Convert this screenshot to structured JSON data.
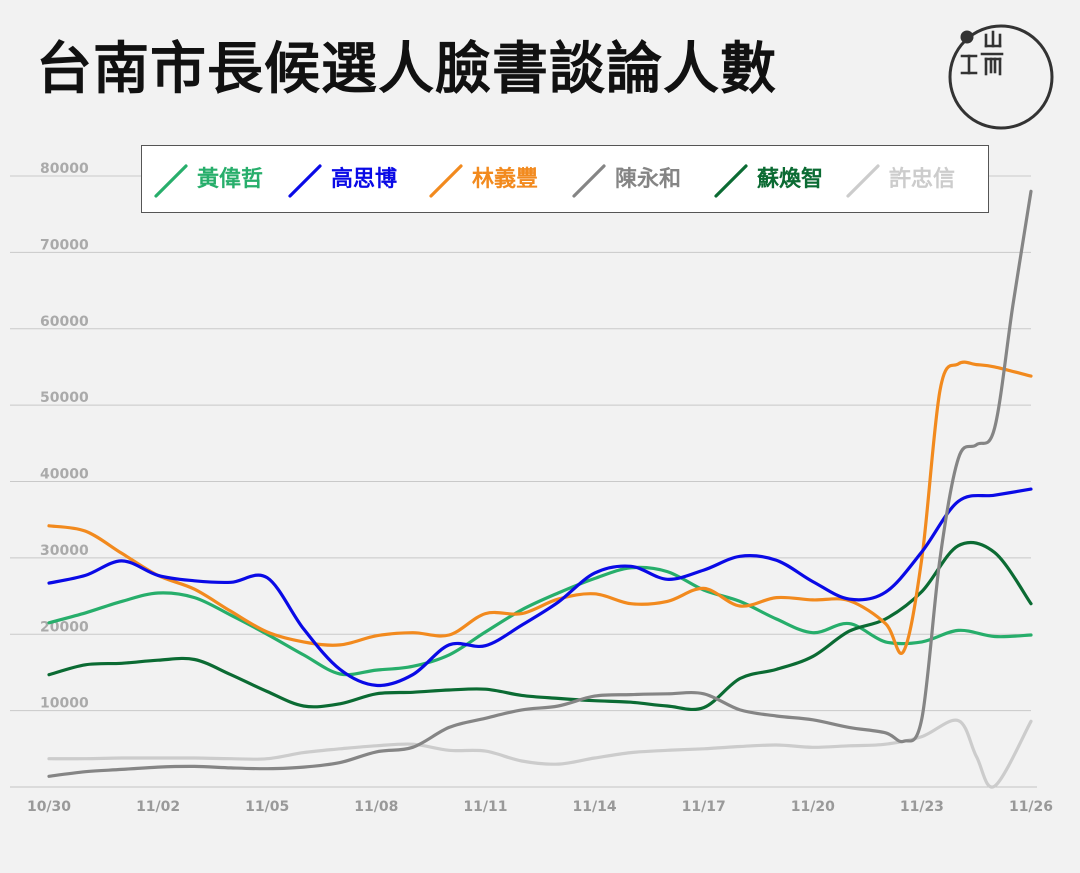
{
  "title": "台南市長候選人臉書談論人數",
  "logo": {
    "name": "端傳媒",
    "glyph_top": "山",
    "glyph_left": "工",
    "glyph_right": "而"
  },
  "chart_data": {
    "type": "line",
    "title": "台南市長候選人臉書談論人數",
    "xlabel": "",
    "ylabel": "",
    "ylim": [
      0,
      80000
    ],
    "xlim": [
      0,
      27
    ],
    "grid": true,
    "legend_position": "top",
    "yticks": [
      10000,
      20000,
      30000,
      40000,
      50000,
      60000,
      70000,
      80000
    ],
    "xticks": [
      {
        "x": 0,
        "label": "10/30"
      },
      {
        "x": 3,
        "label": "11/02"
      },
      {
        "x": 6,
        "label": "11/05"
      },
      {
        "x": 9,
        "label": "11/08"
      },
      {
        "x": 12,
        "label": "11/11"
      },
      {
        "x": 15,
        "label": "11/14"
      },
      {
        "x": 18,
        "label": "11/17"
      },
      {
        "x": 21,
        "label": "11/20"
      },
      {
        "x": 24,
        "label": "11/23"
      },
      {
        "x": 27,
        "label": "11/26"
      }
    ],
    "series": [
      {
        "name": "黃偉哲",
        "color": "#27ae6b",
        "x": [
          0,
          1,
          2,
          3,
          4,
          5,
          6,
          7,
          8,
          9,
          10,
          11,
          12,
          13,
          14,
          15,
          16,
          17,
          18,
          19,
          20,
          21,
          22,
          23,
          24,
          25,
          26,
          27
        ],
        "values": [
          21500,
          22800,
          24300,
          25400,
          24800,
          22500,
          20000,
          17300,
          14800,
          15300,
          15800,
          17300,
          20300,
          23200,
          25400,
          27300,
          28700,
          28200,
          25800,
          24300,
          22000,
          20200,
          21400,
          19000,
          19000,
          20500,
          19700,
          19900
        ]
      },
      {
        "name": "高思博",
        "color": "#0a0ae6",
        "x": [
          0,
          1,
          2,
          3,
          4,
          5,
          6,
          7,
          8,
          9,
          10,
          11,
          12,
          13,
          14,
          15,
          16,
          17,
          18,
          19,
          20,
          21,
          22,
          23,
          24,
          25,
          26,
          27
        ],
        "values": [
          26700,
          27700,
          29600,
          27700,
          27000,
          26800,
          27400,
          20700,
          15400,
          13300,
          14700,
          18600,
          18500,
          21200,
          24200,
          28000,
          28900,
          27200,
          28400,
          30200,
          29700,
          26900,
          24600,
          25500,
          30800,
          37400,
          38200,
          39000
        ]
      },
      {
        "name": "林義豐",
        "color": "#f28a1e",
        "x": [
          0,
          1,
          2,
          3,
          4,
          5,
          6,
          7,
          8,
          9,
          10,
          11,
          12,
          13,
          14,
          15,
          16,
          17,
          18,
          19,
          20,
          21,
          22,
          23,
          23.5,
          24,
          24.5,
          25,
          25.5,
          26,
          27
        ],
        "values": [
          34200,
          33500,
          30600,
          27700,
          25900,
          23000,
          20300,
          19000,
          18600,
          19800,
          20200,
          19900,
          22700,
          22700,
          24600,
          25300,
          24000,
          24300,
          26000,
          23700,
          24800,
          24500,
          24400,
          21400,
          17800,
          30000,
          52000,
          55400,
          55300,
          55000,
          53800
        ]
      },
      {
        "name": "陳永和",
        "color": "#858585",
        "x": [
          0,
          1,
          2,
          3,
          4,
          5,
          6,
          7,
          8,
          9,
          10,
          11,
          12,
          13,
          14,
          15,
          16,
          17,
          18,
          19,
          20,
          21,
          22,
          23,
          23.5,
          24,
          24.5,
          25,
          25.5,
          26,
          26.5,
          27
        ],
        "values": [
          1400,
          2000,
          2300,
          2600,
          2700,
          2500,
          2400,
          2600,
          3200,
          4600,
          5200,
          7800,
          9000,
          10100,
          10600,
          11900,
          12100,
          12200,
          12200,
          10100,
          9300,
          8800,
          7800,
          7100,
          6000,
          9000,
          30000,
          43000,
          44800,
          47000,
          63000,
          78000
        ]
      },
      {
        "name": "蘇煥智",
        "color": "#0b6b33",
        "x": [
          0,
          1,
          2,
          3,
          4,
          5,
          6,
          7,
          8,
          9,
          10,
          11,
          12,
          13,
          14,
          15,
          16,
          17,
          18,
          19,
          20,
          21,
          22,
          23,
          24,
          25,
          26,
          27
        ],
        "values": [
          14700,
          16000,
          16200,
          16600,
          16700,
          14700,
          12500,
          10600,
          10900,
          12200,
          12400,
          12700,
          12800,
          12000,
          11600,
          11300,
          11100,
          10600,
          10400,
          14200,
          15400,
          17100,
          20400,
          22000,
          25600,
          31600,
          30700,
          24000
        ]
      },
      {
        "name": "許忠信",
        "color": "#cccccc",
        "x": [
          0,
          1,
          2,
          3,
          4,
          5,
          6,
          7,
          8,
          9,
          10,
          11,
          12,
          13,
          14,
          15,
          16,
          17,
          18,
          19,
          20,
          21,
          22,
          23,
          24,
          25,
          25.5,
          26,
          27
        ],
        "values": [
          3700,
          3700,
          3800,
          3800,
          3800,
          3700,
          3700,
          4500,
          5000,
          5400,
          5600,
          4800,
          4700,
          3400,
          3000,
          3800,
          4500,
          4800,
          5000,
          5300,
          5500,
          5200,
          5400,
          5600,
          6600,
          8700,
          4000,
          100,
          8600
        ]
      }
    ]
  }
}
